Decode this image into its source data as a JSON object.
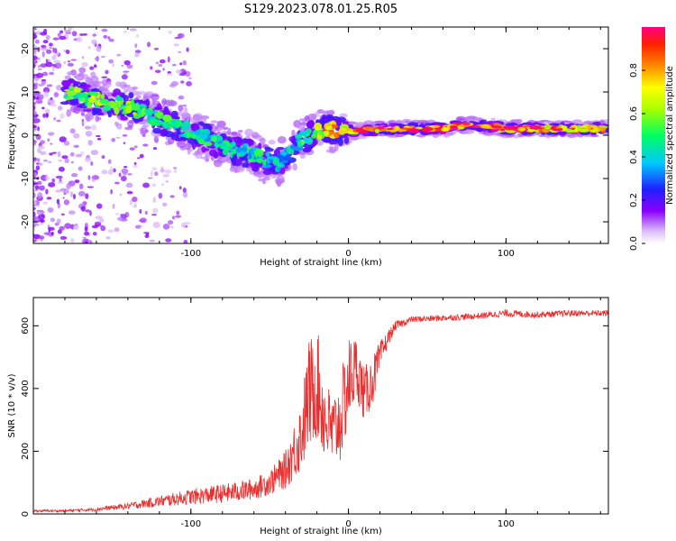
{
  "figure": {
    "title": "S129.2023.078.01.25.R05"
  },
  "chart_data": [
    {
      "type": "heatmap",
      "xlabel": "Height of straight line (km)",
      "ylabel": "Frequency (Hz)",
      "xlim": [
        -200,
        165
      ],
      "ylim": [
        -25,
        25
      ],
      "x_ticks": [
        -100,
        0,
        100
      ],
      "y_ticks": [
        -20,
        -10,
        0,
        10,
        20
      ],
      "colorbar": {
        "label": "Normalized spectral amplitude",
        "range": [
          0,
          1
        ],
        "ticks": [
          0.0,
          0.2,
          0.4,
          0.6,
          0.8
        ]
      },
      "ridge": [
        {
          "x": -175,
          "y": 10,
          "a": 0.55
        },
        {
          "x": -165,
          "y": 8.5,
          "a": 0.6
        },
        {
          "x": -155,
          "y": 7.5,
          "a": 0.6
        },
        {
          "x": -145,
          "y": 7,
          "a": 0.55
        },
        {
          "x": -135,
          "y": 6,
          "a": 0.55
        },
        {
          "x": -125,
          "y": 4.5,
          "a": 0.5
        },
        {
          "x": -115,
          "y": 3,
          "a": 0.5
        },
        {
          "x": -105,
          "y": 1.5,
          "a": 0.45
        },
        {
          "x": -95,
          "y": 0,
          "a": 0.45
        },
        {
          "x": -85,
          "y": -1.5,
          "a": 0.45
        },
        {
          "x": -75,
          "y": -3,
          "a": 0.45
        },
        {
          "x": -65,
          "y": -4,
          "a": 0.45
        },
        {
          "x": -55,
          "y": -5.5,
          "a": 0.45
        },
        {
          "x": -45,
          "y": -6.5,
          "a": 0.4
        },
        {
          "x": -38,
          "y": -4,
          "a": 0.4
        },
        {
          "x": -30,
          "y": -1,
          "a": 0.5
        },
        {
          "x": -22,
          "y": 0,
          "a": 0.6
        },
        {
          "x": -15,
          "y": 1.5,
          "a": 0.75
        },
        {
          "x": -5,
          "y": 1,
          "a": 0.75
        },
        {
          "x": 5,
          "y": 1,
          "a": 0.8
        },
        {
          "x": 20,
          "y": 1.5,
          "a": 0.9
        },
        {
          "x": 40,
          "y": 1.5,
          "a": 0.95
        },
        {
          "x": 60,
          "y": 1.5,
          "a": 0.95
        },
        {
          "x": 75,
          "y": 2.5,
          "a": 0.95
        },
        {
          "x": 90,
          "y": 2,
          "a": 0.9
        },
        {
          "x": 100,
          "y": 1.5,
          "a": 0.9
        },
        {
          "x": 120,
          "y": 1.5,
          "a": 0.9
        },
        {
          "x": 140,
          "y": 1.5,
          "a": 0.85
        },
        {
          "x": 160,
          "y": 1.5,
          "a": 0.85
        }
      ]
    },
    {
      "type": "line",
      "xlabel": "Height of straight line (km)",
      "ylabel": "SNR (10 * v/v)",
      "xlim": [
        -200,
        165
      ],
      "ylim": [
        0,
        690
      ],
      "x_ticks": [
        -100,
        0,
        100
      ],
      "y_ticks": [
        0,
        200,
        400,
        600
      ],
      "series": [
        {
          "color": "#e83030",
          "envelope": {
            "x": [
              -200,
              -180,
              -160,
              -140,
              -120,
              -100,
              -80,
              -60,
              -50,
              -40,
              -30,
              -25,
              -20,
              -15,
              -10,
              -5,
              0,
              5,
              10,
              15,
              20,
              25,
              30,
              40,
              60,
              80,
              100,
              120,
              140,
              165
            ],
            "y": [
              10,
              10,
              15,
              25,
              40,
              55,
              65,
              80,
              100,
              140,
              250,
              380,
              420,
              300,
              260,
              300,
              420,
              470,
              380,
              420,
              500,
              560,
              600,
              620,
              625,
              630,
              640,
              635,
              640,
              640
            ],
            "noise": [
              4,
              4,
              6,
              10,
              18,
              25,
              30,
              35,
              40,
              60,
              120,
              180,
              180,
              140,
              120,
              140,
              150,
              100,
              90,
              80,
              50,
              25,
              15,
              10,
              10,
              10,
              12,
              10,
              10,
              10
            ]
          }
        }
      ]
    }
  ]
}
